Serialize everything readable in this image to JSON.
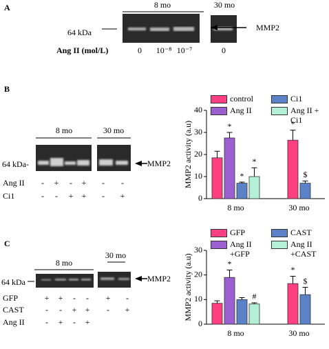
{
  "panel_a": {
    "label": "A",
    "groups": [
      "8 mo",
      "30 mo"
    ],
    "marker": "64 kDa",
    "band": "MMP2",
    "row_label": "Ang II (mol/L)",
    "doses": [
      "0",
      "10⁻⁸",
      "10⁻⁷",
      "0"
    ]
  },
  "panel_b": {
    "label": "B",
    "groups": [
      "8 mo",
      "30 mo"
    ],
    "marker": "64 kDa-",
    "band": "MMP2",
    "rows": [
      {
        "label": "Ang II",
        "marks": [
          "-",
          "+",
          "-",
          "+",
          "-",
          "-"
        ]
      },
      {
        "label": "Ci1",
        "marks": [
          "-",
          "-",
          "+",
          "+",
          "-",
          "+"
        ]
      }
    ]
  },
  "panel_c": {
    "label": "C",
    "groups": [
      "8 mo",
      "30 mo"
    ],
    "marker": "64 kDa",
    "band": "MMP2",
    "rows": [
      {
        "label": "GFP",
        "marks": [
          "+",
          "+",
          "-",
          "-",
          "+",
          "-"
        ]
      },
      {
        "label": "CAST",
        "marks": [
          "-",
          "-",
          "+",
          "+",
          "-",
          "+"
        ]
      },
      {
        "label": "Ang II",
        "marks": [
          "-",
          "+",
          "-",
          "+"
        ]
      }
    ]
  },
  "chart_data": [
    {
      "type": "bar",
      "y_label": "MMP2 activity (a.u)",
      "categories": [
        "8 mo",
        "30 mo"
      ],
      "ylim": [
        0,
        40
      ],
      "yticks": [
        0,
        10,
        20,
        30,
        40
      ],
      "series": [
        {
          "name": "control",
          "color": "#ff3f7f",
          "values": [
            18.5,
            26.5
          ],
          "errors": [
            3,
            4.5
          ],
          "annotations": [
            null,
            "*"
          ]
        },
        {
          "name": "Ang II",
          "color": "#9b5fd0",
          "values": [
            27.5,
            null
          ],
          "errors": [
            2.5,
            null
          ],
          "annotations": [
            "*",
            null
          ]
        },
        {
          "name": "Ci1",
          "color": "#5b82c8",
          "values": [
            7,
            7
          ],
          "errors": [
            0.5,
            1
          ],
          "annotations": [
            "*",
            "$"
          ]
        },
        {
          "name": "Ang II + Ci1",
          "color": "#b4f0d8",
          "values": [
            10,
            null
          ],
          "errors": [
            4,
            null
          ],
          "annotations": [
            "*",
            null
          ]
        }
      ]
    },
    {
      "type": "bar",
      "y_label": "MMP2 activity (a.u)",
      "categories": [
        "8 mo",
        "30 mo"
      ],
      "ylim": [
        0,
        30
      ],
      "yticks": [
        0,
        10,
        20,
        30
      ],
      "series": [
        {
          "name": "GFP",
          "color": "#ff3f7f",
          "values": [
            8.5,
            16.5
          ],
          "errors": [
            1,
            3
          ],
          "annotations": [
            null,
            "*"
          ]
        },
        {
          "name": "Ang II +GFP",
          "color": "#9b5fd0",
          "values": [
            19,
            null
          ],
          "errors": [
            3,
            null
          ],
          "annotations": [
            "*",
            null
          ]
        },
        {
          "name": "CAST",
          "color": "#5b82c8",
          "values": [
            10,
            12
          ],
          "errors": [
            0.8,
            3
          ],
          "annotations": [
            null,
            "$"
          ]
        },
        {
          "name": "Ang II +CAST",
          "color": "#b4f0d8",
          "values": [
            8.2,
            null
          ],
          "errors": [
            0.5,
            null
          ],
          "annotations": [
            "#",
            null
          ]
        }
      ]
    }
  ]
}
